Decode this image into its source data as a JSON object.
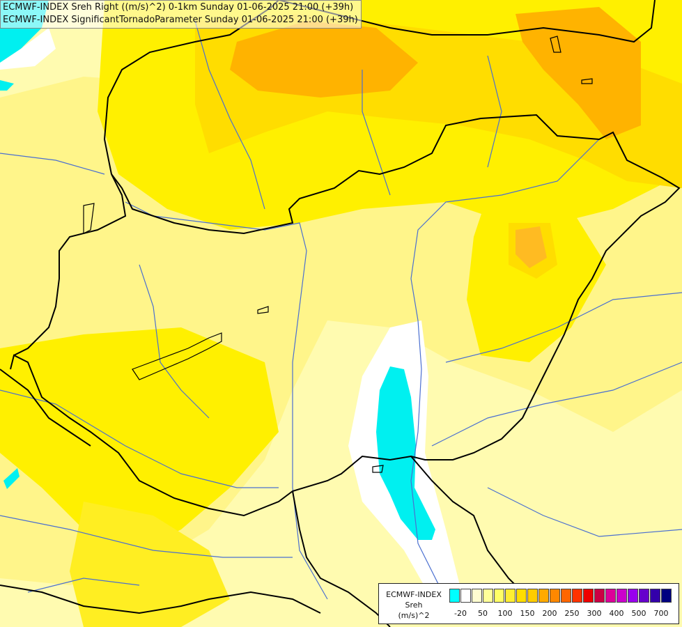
{
  "title": {
    "line1": "ECMWF-INDEX Sreh Right ((m/s)^2) 0-1km Sunday 01-06-2025 21:00 (+39h)",
    "line2": "ECMWF-INDEX SignificantTornadoParameter Sunday 01-06-2025 21:00 (+39h)"
  },
  "legend": {
    "line1": "ECMWF-INDEX",
    "line2": "Sreh",
    "line3": "(m/s)^2",
    "colors": [
      "#00ffff",
      "#ffffff",
      "#fffdd0",
      "#ffff99",
      "#ffff66",
      "#ffee33",
      "#ffdd00",
      "#ffcc00",
      "#ffaa00",
      "#ff8800",
      "#ff6600",
      "#ff3300",
      "#ee0000",
      "#cc0044",
      "#dd0099",
      "#cc00cc",
      "#9900ee",
      "#6600cc",
      "#3300aa",
      "#000080"
    ],
    "ticks": [
      "-20",
      "50",
      "100",
      "150",
      "200",
      "250",
      "300",
      "400",
      "500",
      "700"
    ]
  },
  "colors": {
    "pale": "#fffbb0",
    "lightyellow": "#fff58a",
    "yellow": "#fff000",
    "gold": "#ffdd00",
    "orange": "#ffb300",
    "cyan": "#00f0f0",
    "white": "#ffffff",
    "border": "#000000",
    "river": "#4a6fd0"
  }
}
